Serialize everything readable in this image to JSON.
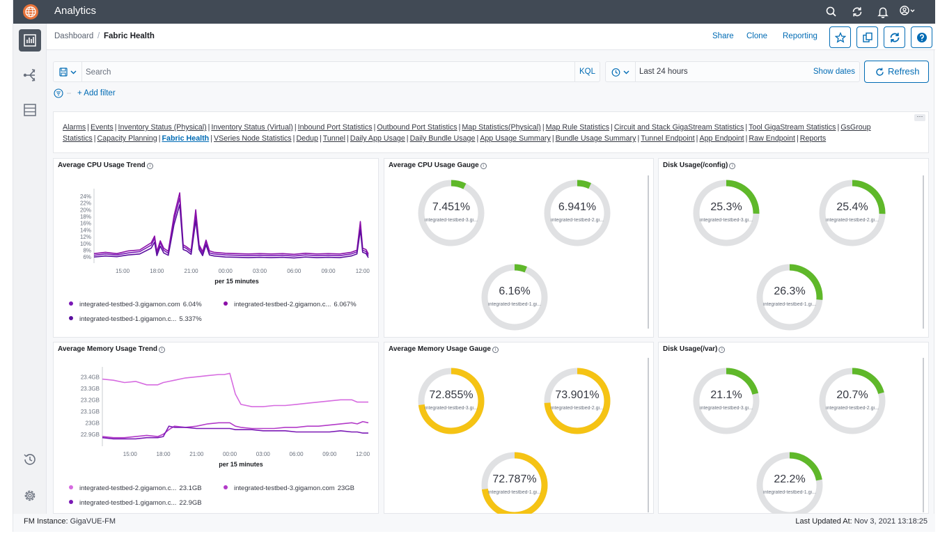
{
  "app": {
    "title": "Analytics"
  },
  "breadcrumb": {
    "parent": "Dashboard",
    "separator": "/",
    "current": "Fabric Health"
  },
  "header_actions": {
    "share": "Share",
    "clone": "Clone",
    "reporting": "Reporting"
  },
  "query": {
    "search_placeholder": "Search",
    "kql": "KQL",
    "time_range": "Last 24 hours",
    "show_dates": "Show dates",
    "refresh": "Refresh",
    "add_filter": "+ Add filter"
  },
  "links": [
    {
      "label": "Alarms"
    },
    {
      "label": "Events"
    },
    {
      "label": "Inventory Status (Physical)"
    },
    {
      "label": "Inventory Status (Virtual)"
    },
    {
      "label": "Inbound Port Statistics"
    },
    {
      "label": "Outbound Port Statistics"
    },
    {
      "label": "Map Statistics(Physical)"
    },
    {
      "label": "Map Rule Statistics"
    },
    {
      "label": "Circuit and Stack GigaStream Statistics"
    },
    {
      "label": "Tool GigaStream Statistics"
    },
    {
      "label": "GsGroup Statistics"
    },
    {
      "label": "Capacity Planning"
    },
    {
      "label": "Fabric Health",
      "active": true
    },
    {
      "label": "VSeries Node Statistics"
    },
    {
      "label": "Dedup"
    },
    {
      "label": "Tunnel"
    },
    {
      "label": "Daily App Usage"
    },
    {
      "label": "Daily Bundle Usage"
    },
    {
      "label": "App Usage Summary"
    },
    {
      "label": "Bundle Usage Summary"
    },
    {
      "label": "Tunnel Endpoint"
    },
    {
      "label": "App Endpoint"
    },
    {
      "label": "Raw Endpoint"
    },
    {
      "label": "Reports"
    }
  ],
  "panels": {
    "cpu_trend": {
      "title": "Average CPU Usage Trend",
      "legend": [
        {
          "name": "integrated-testbed-3.gigamon.com",
          "value": "6.04%",
          "color": "#7a18b5"
        },
        {
          "name": "integrated-testbed-2.gigamon.c...",
          "value": "6.067%",
          "color": "#8b0fa8"
        },
        {
          "name": "integrated-testbed-1.gigamon.c...",
          "value": "5.337%",
          "color": "#5a0f9e"
        }
      ]
    },
    "cpu_gauge": {
      "title": "Average CPU Usage Gauge",
      "gauges": [
        {
          "value": "7.451%",
          "pct": 7.451,
          "label": "integrated-testbed-3.gi...",
          "color": "#5fb82a"
        },
        {
          "value": "6.941%",
          "pct": 6.941,
          "label": "integrated-testbed-2.gi...",
          "color": "#5fb82a"
        },
        {
          "value": "6.16%",
          "pct": 6.16,
          "label": "integrated-testbed-1.gi...",
          "color": "#5fb82a"
        }
      ]
    },
    "disk_config": {
      "title": "Disk Usage(/config)",
      "gauges": [
        {
          "value": "25.3%",
          "pct": 25.3,
          "label": "integrated-testbed-3.gi...",
          "color": "#5fb82a"
        },
        {
          "value": "25.4%",
          "pct": 25.4,
          "label": "integrated-testbed-2.gi...",
          "color": "#5fb82a"
        },
        {
          "value": "26.3%",
          "pct": 26.3,
          "label": "integrated-testbed-1.gi...",
          "color": "#5fb82a"
        }
      ]
    },
    "mem_trend": {
      "title": "Average Memory Usage Trend",
      "legend": [
        {
          "name": "integrated-testbed-2.gigamon.c...",
          "value": "23.1GB",
          "color": "#d66be0"
        },
        {
          "name": "integrated-testbed-3.gigamon.com",
          "value": "23GB",
          "color": "#b23ac8"
        },
        {
          "name": "integrated-testbed-1.gigamon.c...",
          "value": "22.9GB",
          "color": "#7a18b5"
        }
      ]
    },
    "mem_gauge": {
      "title": "Average Memory Usage Gauge",
      "gauges": [
        {
          "value": "72.855%",
          "pct": 72.855,
          "label": "integrated-testbed-3.gi...",
          "color": "#f5c314"
        },
        {
          "value": "73.901%",
          "pct": 73.901,
          "label": "integrated-testbed-2.gi...",
          "color": "#f5c314"
        },
        {
          "value": "72.787%",
          "pct": 72.787,
          "label": "integrated-testbed-1.gi...",
          "color": "#f5c314"
        }
      ]
    },
    "disk_var": {
      "title": "Disk Usage(/var)",
      "gauges": [
        {
          "value": "21.1%",
          "pct": 21.1,
          "label": "integrated-testbed-3.gi...",
          "color": "#5fb82a"
        },
        {
          "value": "20.7%",
          "pct": 20.7,
          "label": "integrated-testbed-2.gi...",
          "color": "#5fb82a"
        },
        {
          "value": "22.2%",
          "pct": 22.2,
          "label": "integrated-testbed-1.gi...",
          "color": "#5fb82a"
        }
      ]
    }
  },
  "chart_data": [
    {
      "type": "line",
      "title": "Average CPU Usage Trend",
      "xlabel": "per 15 minutes",
      "ylabel": "",
      "x_ticks": [
        "15:00",
        "18:00",
        "21:00",
        "00:00",
        "03:00",
        "06:00",
        "09:00",
        "12:00"
      ],
      "y_ticks": [
        "24%",
        "22%",
        "20%",
        "18%",
        "16%",
        "14%",
        "12%",
        "10%",
        "8%",
        "6%"
      ],
      "ylim": [
        5,
        25
      ],
      "x": [
        12.5,
        13.5,
        14.5,
        15.5,
        16.5,
        17.5,
        17.8,
        18.0,
        18.3,
        18.6,
        19.0,
        19.5,
        20.0,
        20.3,
        20.6,
        21.0,
        21.4,
        21.7,
        22.0,
        22.3,
        22.6,
        23.0,
        24.0,
        25.0,
        26.0,
        27.0,
        28.0,
        29.0,
        30.0,
        31.0,
        32.0,
        33.0,
        34.0,
        35.0,
        35.5,
        35.8,
        36.0,
        36.3,
        36.5
      ],
      "series": [
        {
          "name": "integrated-testbed-3.gigamon.com",
          "values": [
            6.5,
            6.9,
            6.6,
            7.2,
            7.6,
            9.5,
            11.5,
            7.0,
            10.2,
            8.0,
            7.1,
            17.0,
            23.5,
            9.0,
            8.5,
            7.4,
            18.5,
            9.0,
            7.0,
            10.5,
            7.2,
            6.9,
            6.6,
            6.5,
            6.4,
            6.5,
            6.4,
            6.5,
            6.3,
            6.6,
            6.4,
            6.5,
            6.4,
            6.9,
            7.5,
            15.5,
            8.0,
            7.6,
            6.4
          ]
        },
        {
          "name": "integrated-testbed-2.gigamon.c...",
          "values": [
            7.0,
            7.4,
            7.0,
            7.8,
            8.1,
            10.2,
            12.2,
            7.6,
            10.8,
            8.6,
            7.7,
            18.2,
            25.0,
            9.6,
            9.0,
            8.0,
            20.0,
            9.6,
            7.6,
            11.0,
            7.8,
            7.4,
            7.1,
            7.0,
            6.9,
            7.0,
            6.9,
            7.0,
            6.8,
            7.1,
            6.9,
            7.0,
            6.9,
            7.4,
            8.0,
            16.5,
            8.6,
            8.2,
            6.9
          ]
        },
        {
          "name": "integrated-testbed-1.gigamon.c...",
          "values": [
            6.0,
            6.3,
            6.1,
            6.6,
            6.9,
            8.6,
            10.4,
            6.4,
            9.2,
            7.2,
            6.5,
            15.6,
            21.5,
            8.2,
            7.8,
            6.8,
            16.8,
            8.2,
            6.4,
            9.6,
            6.6,
            6.3,
            6.0,
            5.9,
            5.8,
            5.9,
            5.8,
            5.9,
            5.7,
            6.0,
            5.8,
            5.9,
            5.8,
            6.3,
            6.9,
            14.0,
            7.4,
            7.0,
            5.8
          ]
        }
      ]
    },
    {
      "type": "line",
      "title": "Average Memory Usage Trend",
      "xlabel": "per 15 minutes",
      "ylabel": "",
      "x_ticks": [
        "15:00",
        "18:00",
        "21:00",
        "00:00",
        "03:00",
        "06:00",
        "09:00",
        "12:00"
      ],
      "y_ticks": [
        "23.4GB",
        "23.3GB",
        "23.2GB",
        "23.1GB",
        "23GB",
        "22.9GB"
      ],
      "ylim": [
        22.82,
        23.45
      ],
      "x": [
        12.5,
        13.5,
        14.5,
        15.5,
        16.5,
        17.5,
        18.0,
        18.5,
        19.0,
        20.0,
        21.0,
        22.0,
        23.0,
        23.5,
        24.0,
        24.5,
        25.0,
        26.0,
        27.0,
        28.0,
        29.0,
        30.0,
        31.0,
        32.0,
        33.0,
        34.0,
        35.0,
        35.5,
        36.0,
        36.5
      ],
      "series": [
        {
          "name": "integrated-testbed-2.gigamon.c...",
          "values": [
            23.38,
            23.37,
            23.35,
            23.36,
            23.33,
            23.33,
            23.35,
            23.36,
            23.37,
            23.39,
            23.4,
            23.41,
            23.42,
            23.42,
            23.43,
            23.25,
            23.16,
            23.14,
            23.14,
            23.15,
            23.15,
            23.16,
            23.17,
            23.18,
            23.19,
            23.2,
            23.2,
            23.18,
            23.18,
            23.18
          ]
        },
        {
          "name": "integrated-testbed-3.gigamon.com",
          "values": [
            22.88,
            22.87,
            22.87,
            22.88,
            22.89,
            22.88,
            22.9,
            22.94,
            22.97,
            22.96,
            22.97,
            22.99,
            23.0,
            23.0,
            23.0,
            22.97,
            22.96,
            22.95,
            22.95,
            22.95,
            22.96,
            22.96,
            22.97,
            22.97,
            22.98,
            22.99,
            23.0,
            22.99,
            23.01,
            23.0
          ]
        },
        {
          "name": "integrated-testbed-1.gigamon.c...",
          "values": [
            22.87,
            22.86,
            22.86,
            22.86,
            22.87,
            22.87,
            22.88,
            22.97,
            22.96,
            22.96,
            22.95,
            22.95,
            22.95,
            22.95,
            22.95,
            22.94,
            22.94,
            22.94,
            22.93,
            22.93,
            22.93,
            22.92,
            22.92,
            22.92,
            22.92,
            22.93,
            22.92,
            22.92,
            22.91,
            22.91
          ]
        }
      ]
    }
  ],
  "footer": {
    "instance_label": "FM Instance:",
    "instance_value": "GigaVUE-FM",
    "updated_label": "Last Updated At:",
    "updated_value": "Nov 3, 2021 13:18:25"
  }
}
